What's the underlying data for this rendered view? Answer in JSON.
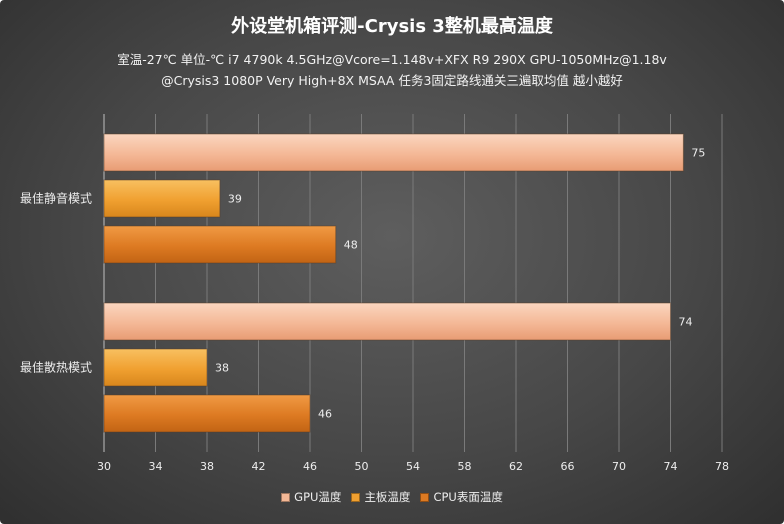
{
  "colors": {
    "gpu": "#f4b896",
    "board": "#f0a030",
    "cpu": "#dd7a22"
  },
  "chart_data": {
    "type": "bar",
    "orientation": "horizontal",
    "title": "外设堂机箱评测-Crysis 3整机最高温度",
    "subtitle_lines": [
      "室温-27℃   单位-℃    i7 4790k 4.5GHz@Vcore=1.148v+XFX  R9 290X GPU-1050MHz@1.18v",
      "@Crysis3 1080P Very High+8X MSAA 任务3固定路线通关三遍取均值  越小越好"
    ],
    "categories": [
      "最佳静音模式",
      "最佳散热模式"
    ],
    "series": [
      {
        "name": "GPU温度",
        "values": [
          75,
          74
        ]
      },
      {
        "name": "主板温度",
        "values": [
          39,
          38
        ]
      },
      {
        "name": "CPU表面温度",
        "values": [
          48,
          46
        ]
      }
    ],
    "xlim": [
      30,
      78
    ],
    "xticks": [
      30,
      34,
      38,
      42,
      46,
      50,
      54,
      58,
      62,
      66,
      70,
      74,
      78
    ],
    "grid": true,
    "legend_position": "bottom"
  }
}
